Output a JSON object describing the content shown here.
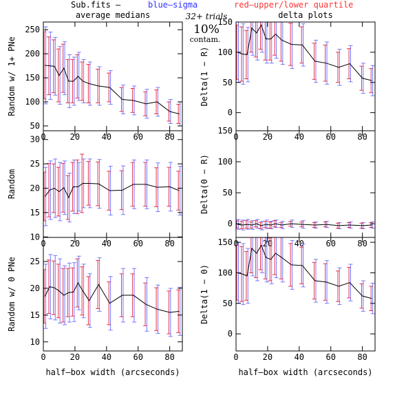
{
  "header": {
    "legend_prefix": "Sub.fits  –",
    "legend_blue": "blue–sigma",
    "legend_red": "red–upper/lower quartile",
    "left_title": "average medians",
    "right_title": "delta plots",
    "trials": "32+ trials",
    "contam_pct": "10%",
    "contam_label": "contam."
  },
  "chart_data": [
    {
      "type": "errorline",
      "ylabel": "Random w/ 1+ PNe",
      "xlim": [
        0,
        88
      ],
      "xticks": [
        0,
        20,
        40,
        60,
        80
      ],
      "ylim": [
        40,
        266
      ],
      "yticks": [
        50,
        100,
        150,
        200,
        250
      ],
      "x": [
        1,
        4,
        7,
        10,
        13,
        16,
        19,
        22,
        25,
        29,
        35,
        42,
        50,
        57,
        65,
        72,
        80,
        86
      ],
      "values": [
        176,
        175,
        174,
        155,
        170,
        143,
        143,
        153,
        143,
        138,
        133,
        130,
        105,
        103,
        96,
        100,
        80,
        75
      ],
      "sigma": [
        80,
        70,
        60,
        60,
        55,
        55,
        50,
        50,
        45,
        45,
        40,
        35,
        30,
        30,
        30,
        30,
        25,
        25
      ],
      "quartile": [
        70,
        60,
        55,
        55,
        50,
        45,
        45,
        45,
        40,
        40,
        35,
        30,
        25,
        25,
        25,
        25,
        20,
        20
      ]
    },
    {
      "type": "errorline",
      "ylabel": "Delta(1 − R)",
      "xlim": [
        0,
        88
      ],
      "xticks": [
        0,
        20,
        40,
        60,
        80
      ],
      "ylim": [
        -30,
        150
      ],
      "yticks": [
        0,
        50,
        100,
        150
      ],
      "x": [
        1,
        4,
        7,
        10,
        13,
        16,
        19,
        22,
        25,
        29,
        35,
        42,
        50,
        57,
        65,
        72,
        80,
        86
      ],
      "values": [
        100,
        97,
        96,
        140,
        132,
        145,
        122,
        122,
        130,
        120,
        113,
        112,
        85,
        82,
        75,
        81,
        57,
        53
      ],
      "sigma": [
        50,
        50,
        45,
        45,
        45,
        45,
        40,
        40,
        40,
        40,
        40,
        35,
        35,
        35,
        30,
        30,
        25,
        25
      ],
      "quartile": [
        45,
        45,
        40,
        40,
        40,
        40,
        35,
        35,
        35,
        35,
        35,
        30,
        30,
        30,
        25,
        25,
        20,
        20
      ]
    },
    {
      "type": "errorline",
      "ylabel": "Random",
      "xlim": [
        0,
        88
      ],
      "xticks": [
        0,
        20,
        40,
        60,
        80
      ],
      "ylim": [
        9.9,
        31.8
      ],
      "yticks": [
        10,
        15,
        20,
        25,
        30
      ],
      "x": [
        1,
        4,
        7,
        10,
        13,
        16,
        19,
        22,
        25,
        29,
        35,
        42,
        50,
        57,
        65,
        72,
        80,
        86
      ],
      "values": [
        18.3,
        19.6,
        20,
        19.3,
        20.1,
        18.1,
        20.3,
        20.3,
        21,
        21,
        20.9,
        19.5,
        19.6,
        20.8,
        20.8,
        20.2,
        20.3,
        19.5
      ],
      "sigma": [
        6,
        6,
        6,
        6,
        5.5,
        5,
        5.5,
        5,
        5,
        5,
        5,
        5,
        5,
        5,
        5,
        5,
        5,
        5
      ],
      "quartile": [
        5,
        5.5,
        5,
        5,
        5,
        4.5,
        5,
        5.5,
        6,
        4.5,
        4.5,
        4,
        4,
        4.5,
        4.5,
        4,
        4,
        4
      ]
    },
    {
      "type": "errorline",
      "ylabel": "Delta(0 − R)",
      "xlim": [
        0,
        88
      ],
      "xticks": [
        0,
        20,
        40,
        60,
        80
      ],
      "ylim": [
        -22,
        150
      ],
      "yticks": [
        0,
        50,
        100,
        150
      ],
      "x": [
        1,
        4,
        7,
        10,
        13,
        16,
        19,
        22,
        25,
        29,
        35,
        42,
        50,
        57,
        65,
        72,
        80,
        86
      ],
      "values": [
        -1,
        -2,
        -1,
        -2,
        0,
        -3,
        -1,
        -2,
        0,
        -2,
        0,
        -1,
        -2,
        -1,
        -3,
        -2,
        -3,
        -2
      ],
      "sigma": [
        8,
        8,
        8,
        7,
        7,
        7,
        7,
        6,
        6,
        6,
        6,
        6,
        5,
        5,
        5,
        5,
        5,
        5
      ],
      "quartile": [
        6,
        6,
        6,
        5,
        5,
        5,
        5,
        5,
        5,
        4,
        4,
        4,
        4,
        4,
        4,
        4,
        4,
        4
      ]
    },
    {
      "type": "errorline",
      "ylabel": "Random w/ 0 PNe",
      "xlabel": "half–box width (arcseconds)",
      "xlim": [
        0,
        88
      ],
      "xticks": [
        0,
        20,
        40,
        60,
        80
      ],
      "ylim": [
        8.3,
        29.5
      ],
      "yticks": [
        10,
        15,
        20,
        25
      ],
      "x": [
        1,
        4,
        7,
        10,
        13,
        16,
        19,
        22,
        25,
        29,
        35,
        42,
        50,
        57,
        65,
        72,
        80,
        86
      ],
      "values": [
        18.5,
        20.3,
        20.1,
        19.5,
        18.7,
        19.2,
        19.3,
        21,
        19.5,
        17.7,
        20.7,
        17.2,
        18.7,
        18.7,
        17,
        16.1,
        15.5,
        15.7
      ],
      "sigma": [
        6,
        6,
        6,
        6,
        5.5,
        5.5,
        5.5,
        5,
        5,
        5,
        5,
        5,
        5,
        5,
        5,
        4.5,
        4.5,
        4.5
      ],
      "quartile": [
        5,
        5,
        5,
        5,
        5,
        4.5,
        4.5,
        4.5,
        4.5,
        4.5,
        4.5,
        4,
        4,
        4,
        4,
        4,
        4,
        4
      ]
    },
    {
      "type": "errorline",
      "ylabel": "Delta(1 − 0)",
      "xlabel": "half–box width (arcseconds)",
      "xlim": [
        0,
        88
      ],
      "xticks": [
        0,
        20,
        40,
        60,
        80
      ],
      "ylim": [
        -28,
        158
      ],
      "yticks": [
        0,
        50,
        100,
        150
      ],
      "x": [
        1,
        4,
        7,
        10,
        13,
        16,
        19,
        22,
        25,
        29,
        35,
        42,
        50,
        57,
        65,
        72,
        80,
        86
      ],
      "values": [
        100,
        98,
        95,
        140,
        132,
        145,
        125,
        122,
        132,
        125,
        113,
        112,
        87,
        85,
        78,
        84,
        62,
        58
      ],
      "sigma": [
        50,
        50,
        45,
        45,
        45,
        45,
        40,
        40,
        40,
        40,
        40,
        35,
        35,
        35,
        30,
        30,
        25,
        25
      ],
      "quartile": [
        45,
        45,
        40,
        40,
        40,
        40,
        35,
        35,
        35,
        35,
        35,
        30,
        30,
        30,
        25,
        25,
        20,
        20
      ]
    }
  ]
}
